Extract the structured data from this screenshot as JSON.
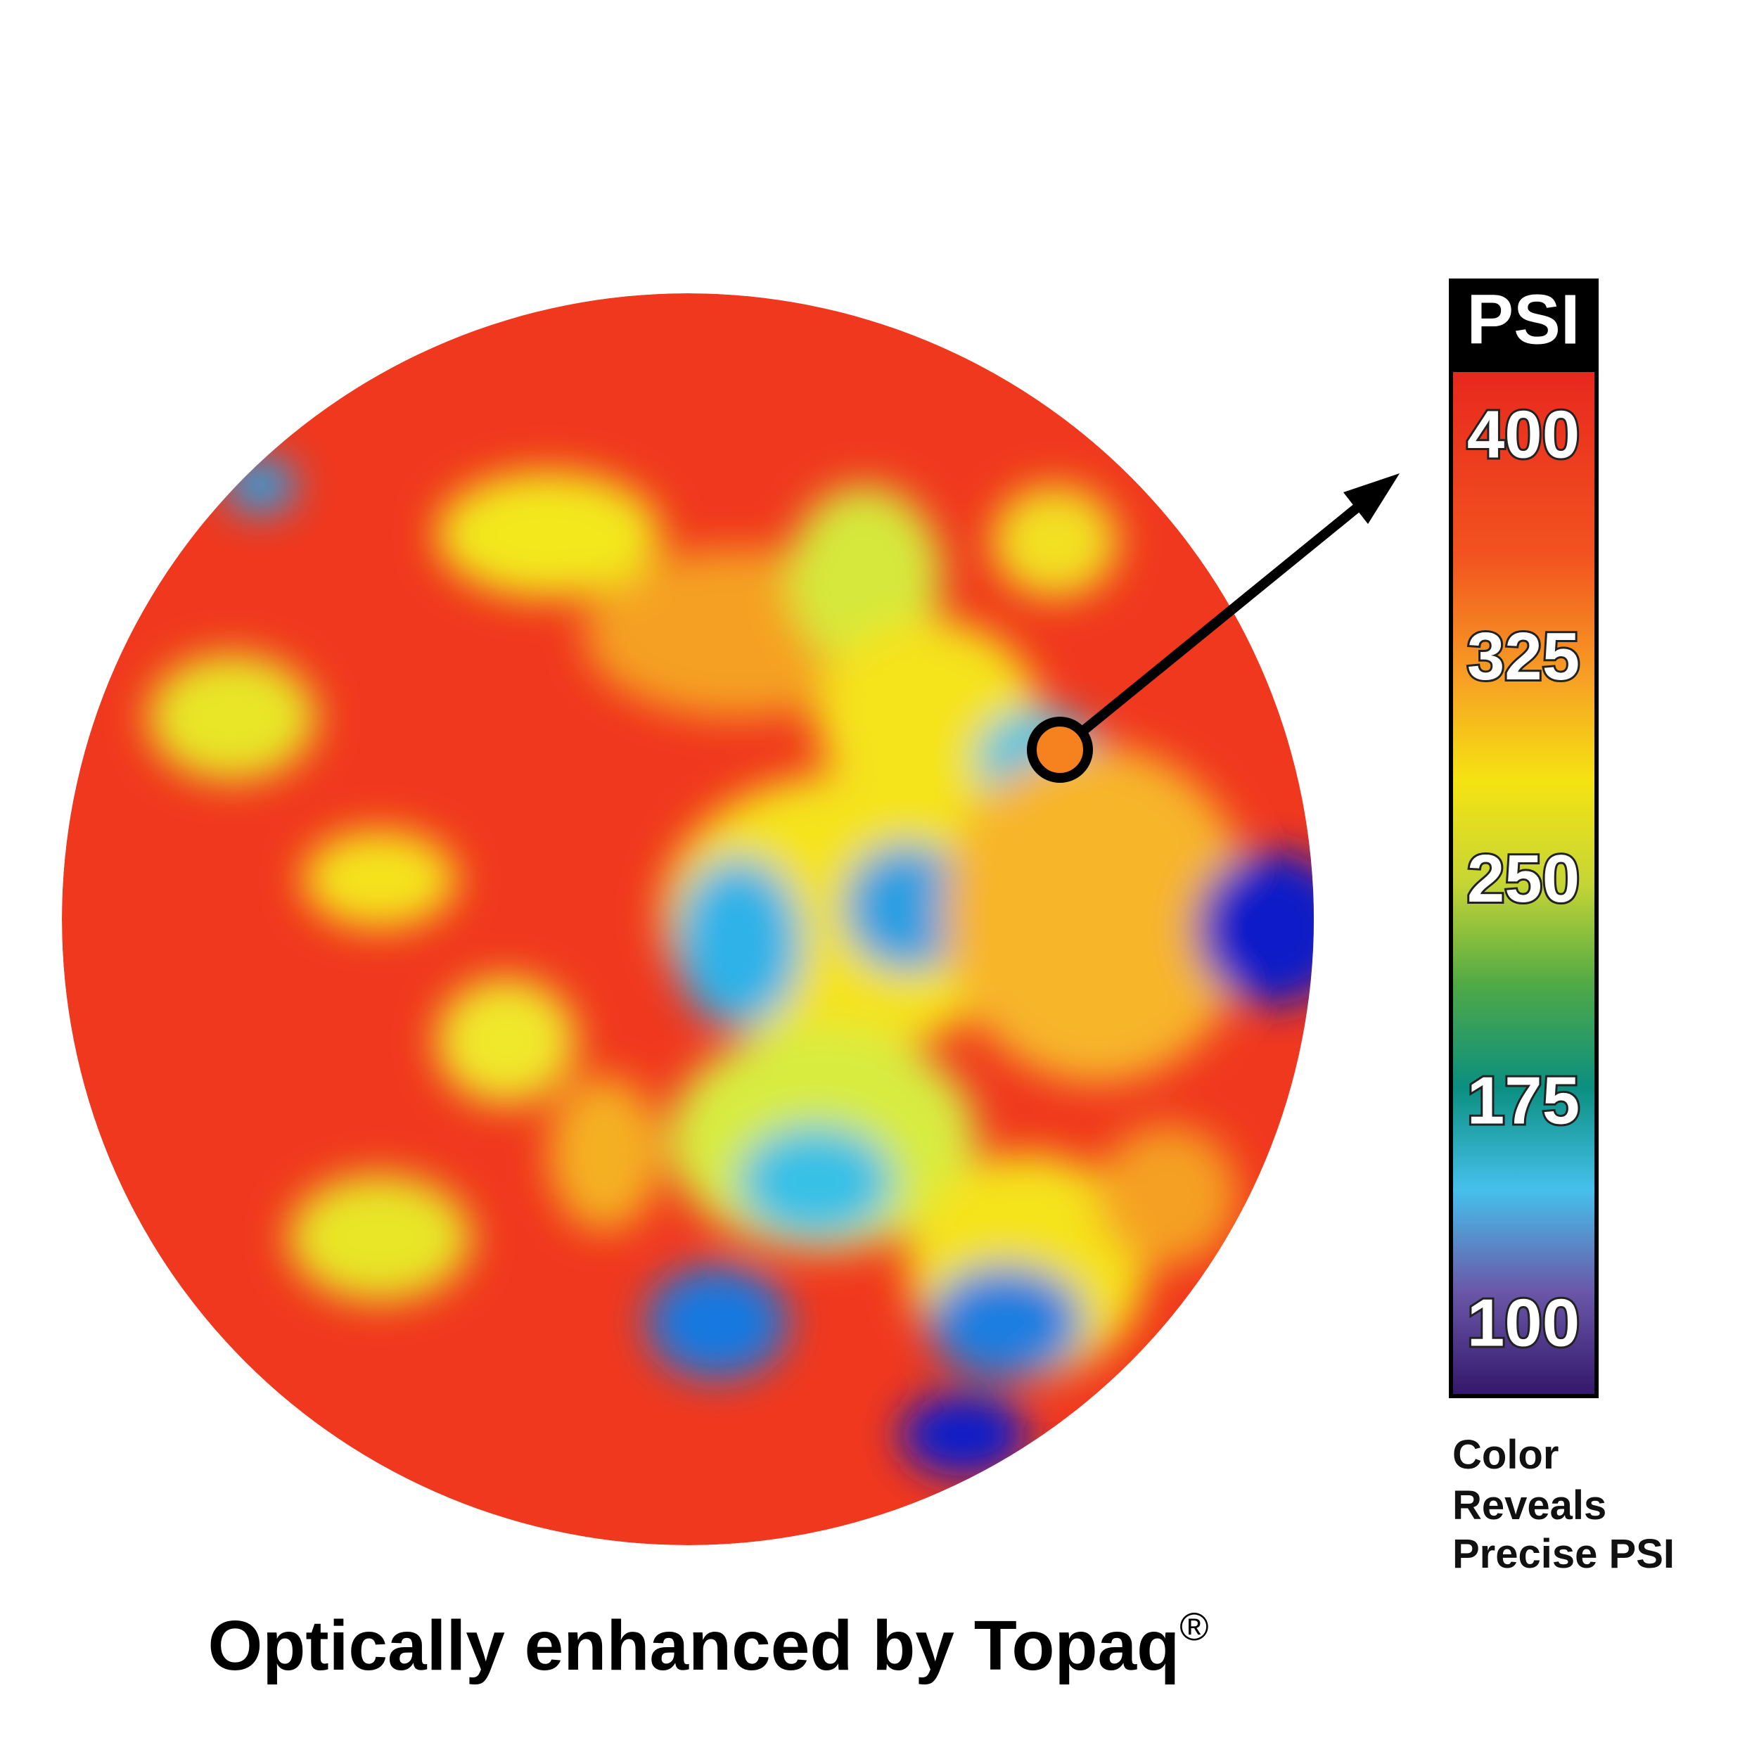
{
  "colorbar": {
    "title": "PSI",
    "ticks": [
      400,
      325,
      250,
      175,
      100
    ]
  },
  "caption": [
    "Color",
    "Reveals",
    "Precise PSI"
  ],
  "footer": {
    "text": "Optically enhanced by Topaq",
    "mark": "®"
  }
}
